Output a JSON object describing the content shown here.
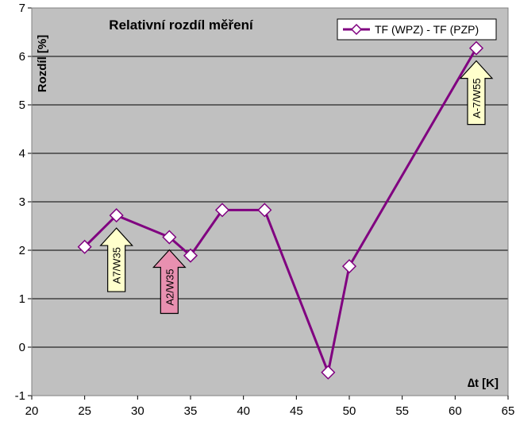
{
  "chart_data": {
    "type": "line",
    "title": "Relativní rozdíl měření",
    "xlabel": "∆t [K]",
    "ylabel": "Rozdíl [%]",
    "xlim": [
      20,
      65
    ],
    "ylim": [
      -1,
      7
    ],
    "xticks": [
      20,
      25,
      30,
      35,
      40,
      45,
      50,
      55,
      60,
      65
    ],
    "yticks": [
      -1,
      0,
      1,
      2,
      3,
      4,
      5,
      6,
      7
    ],
    "grid": true,
    "legend_position": "top-right",
    "series": [
      {
        "name": "TF (WPZ) - TF (PZP)",
        "color": "#800080",
        "marker": "diamond",
        "x": [
          25,
          28,
          33,
          35,
          38,
          42,
          48,
          50,
          62
        ],
        "y": [
          2.07,
          2.72,
          2.27,
          1.89,
          2.83,
          2.83,
          -0.52,
          1.67,
          6.17
        ]
      }
    ],
    "annotations": [
      {
        "text": "A7/W35",
        "x": 28,
        "y": 2.72,
        "color": "#ffffcc"
      },
      {
        "text": "A2/W35",
        "x": 33,
        "y": 2.27,
        "color": "#e890b0"
      },
      {
        "text": "A-7/W55",
        "x": 62,
        "y": 6.17,
        "color": "#ffffcc"
      }
    ],
    "colors": {
      "plot_bg": "#c0c0c0",
      "grid": "#000000"
    }
  }
}
